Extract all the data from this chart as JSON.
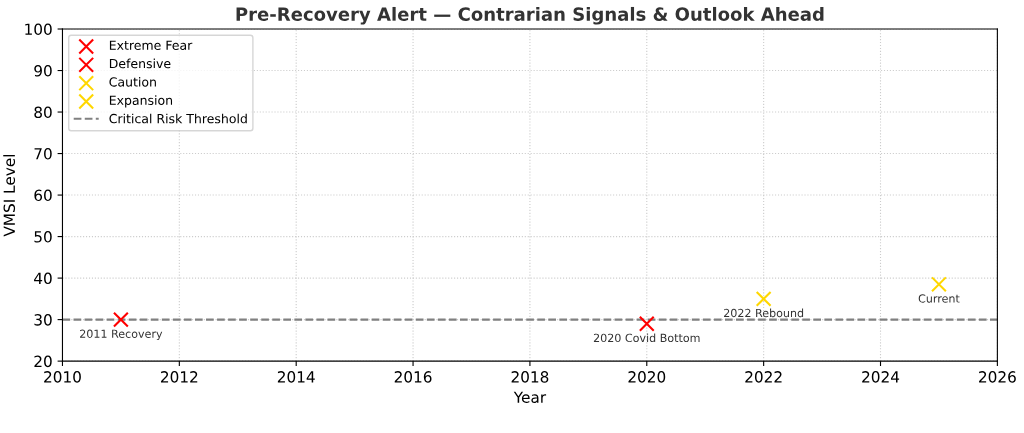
{
  "chart_data": {
    "type": "scatter",
    "title": "Pre-Recovery Alert — Contrarian Signals & Outlook Ahead",
    "xlabel": "Year",
    "ylabel": "VMSI Level",
    "series": [
      {
        "name": "Extreme Fear",
        "color": "#ff0000",
        "x": [
          2011
        ],
        "values": [
          30
        ]
      },
      {
        "name": "Defensive",
        "color": "#ff0000",
        "x": [
          2020
        ],
        "values": [
          29
        ]
      },
      {
        "name": "Caution",
        "color": "#ffd700",
        "x": [
          2022
        ],
        "values": [
          35
        ]
      },
      {
        "name": "Expansion",
        "color": "#ffd700",
        "x": [
          2025
        ],
        "values": [
          38.5
        ]
      }
    ],
    "marker": "cross",
    "xlim": [
      2010,
      2026
    ],
    "xticks": [
      2010,
      2012,
      2014,
      2016,
      2018,
      2020,
      2022,
      2024,
      2026
    ],
    "ylim": [
      20,
      100
    ],
    "yticks": [
      20,
      30,
      40,
      50,
      60,
      70,
      80,
      90,
      100
    ],
    "ref_lines": [
      {
        "axis": "y",
        "value": 30,
        "label": "Critical Risk Threshold",
        "color": "#808080",
        "line_style": "dashed"
      }
    ],
    "annotations": [
      {
        "text": "2011 Recovery",
        "x": 2011,
        "y": 30
      },
      {
        "text": "2020 Covid Bottom",
        "x": 2020,
        "y": 29
      },
      {
        "text": "2022 Rebound",
        "x": 2022,
        "y": 35
      },
      {
        "text": "Current",
        "x": 2025,
        "y": 38.5
      }
    ],
    "grid": true,
    "legend": "top left"
  }
}
